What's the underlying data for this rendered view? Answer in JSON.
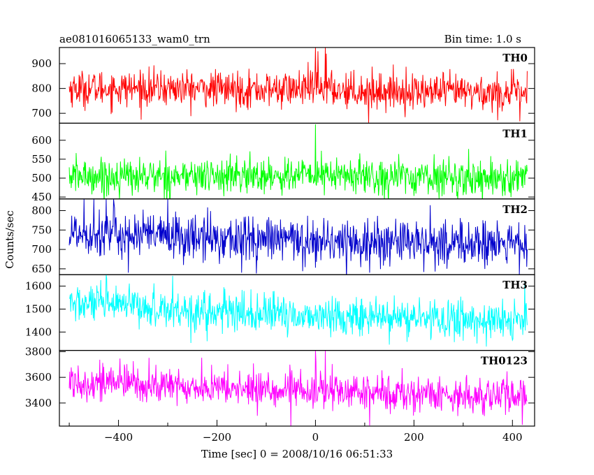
{
  "chart_data": {
    "type": "line",
    "title": "ae081016065133_wam0_trn",
    "subtitle": "Bin time: 1.0 s",
    "xlabel": "Time [sec] 0 = 2008/10/16 06:51:33",
    "ylabel": "Counts/sec",
    "xlim": [
      -520,
      445
    ],
    "x_ticks": [
      -400,
      -200,
      0,
      200,
      400
    ],
    "x_start": -500,
    "x_end": 430,
    "grid": false,
    "legend": "none",
    "series": [
      {
        "name": "TH0",
        "color": "#ff0000",
        "ylim": [
          660,
          965
        ],
        "y_ticks": [
          700,
          800,
          900
        ],
        "baseline": [
          [
            -500,
            800
          ],
          [
            -300,
            800
          ],
          [
            -100,
            795
          ],
          [
            0,
            800
          ],
          [
            100,
            790
          ],
          [
            300,
            785
          ],
          [
            430,
            780
          ]
        ],
        "noise": 36,
        "spikes": [
          [
            0,
            965
          ],
          [
            5,
            950
          ],
          [
            20,
            965
          ],
          [
            22,
            940
          ],
          [
            108,
            660
          ],
          [
            370,
            672
          ],
          [
            415,
            668
          ]
        ]
      },
      {
        "name": "TH1",
        "color": "#00ff00",
        "ylim": [
          445,
          645
        ],
        "y_ticks": [
          450,
          500,
          550,
          600
        ],
        "baseline": [
          [
            -500,
            505
          ],
          [
            -200,
            505
          ],
          [
            0,
            508
          ],
          [
            200,
            503
          ],
          [
            430,
            500
          ]
        ],
        "noise": 24,
        "spikes": [
          [
            0,
            642
          ],
          [
            -420,
            455
          ],
          [
            120,
            460
          ],
          [
            300,
            455
          ]
        ]
      },
      {
        "name": "TH2",
        "color": "#0000cc",
        "ylim": [
          635,
          830
        ],
        "y_ticks": [
          650,
          700,
          750,
          800
        ],
        "baseline": [
          [
            -500,
            745
          ],
          [
            -400,
            740
          ],
          [
            -300,
            732
          ],
          [
            -100,
            725
          ],
          [
            0,
            722
          ],
          [
            200,
            718
          ],
          [
            430,
            712
          ]
        ],
        "noise": 30,
        "spikes": [
          [
            -470,
            830
          ],
          [
            -450,
            830
          ],
          [
            -425,
            830
          ],
          [
            -410,
            830
          ],
          [
            -380,
            640
          ],
          [
            -300,
            830
          ],
          [
            -150,
            640
          ],
          [
            -120,
            638
          ],
          [
            110,
            640
          ],
          [
            220,
            642
          ]
        ]
      },
      {
        "name": "TH3",
        "color": "#00ffff",
        "ylim": [
          1320,
          1650
        ],
        "y_ticks": [
          1400,
          1500,
          1600
        ],
        "baseline": [
          [
            -500,
            1525
          ],
          [
            -400,
            1515
          ],
          [
            -200,
            1485
          ],
          [
            0,
            1470
          ],
          [
            200,
            1460
          ],
          [
            430,
            1445
          ]
        ],
        "noise": 42,
        "spikes": [
          [
            -425,
            1650
          ],
          [
            -290,
            1645
          ],
          [
            -220,
            1360
          ],
          [
            150,
            1345
          ],
          [
            425,
            1620
          ]
        ]
      },
      {
        "name": "TH0123",
        "color": "#ff00ff",
        "ylim": [
          3220,
          3810
        ],
        "y_ticks": [
          3400,
          3600,
          3800
        ],
        "baseline": [
          [
            -500,
            3570
          ],
          [
            -400,
            3560
          ],
          [
            -300,
            3530
          ],
          [
            -100,
            3505
          ],
          [
            0,
            3495
          ],
          [
            200,
            3470
          ],
          [
            430,
            3450
          ]
        ],
        "noise": 72,
        "spikes": [
          [
            0,
            3810
          ],
          [
            20,
            3810
          ],
          [
            -50,
            3220
          ],
          [
            110,
            3225
          ],
          [
            420,
            3230
          ]
        ]
      }
    ]
  }
}
